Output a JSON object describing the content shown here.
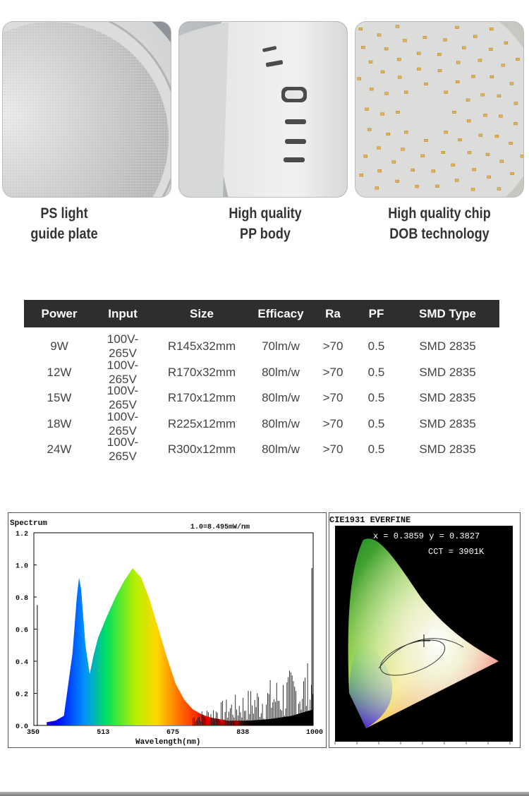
{
  "features": [
    {
      "line1": "PS light",
      "line2": "guide plate"
    },
    {
      "line1": "High quality",
      "line2": "PP body"
    },
    {
      "line1": "High quality chip",
      "line2": "DOB technology"
    }
  ],
  "table": {
    "headers": [
      "Power",
      "Input",
      "Size",
      "Efficacy",
      "Ra",
      "PF",
      "SMD Type"
    ],
    "rows": [
      [
        "9W",
        "100V-265V",
        "R145x32mm",
        "70lm/w",
        ">70",
        "0.5",
        "SMD 2835"
      ],
      [
        "12W",
        "100V-265V",
        "R170x32mm",
        "80lm/w",
        ">70",
        "0.5",
        "SMD 2835"
      ],
      [
        "15W",
        "100V-265V",
        "R170x12mm",
        "80lm/w",
        ">70",
        "0.5",
        "SMD 2835"
      ],
      [
        "18W",
        "100V-265V",
        "R225x12mm",
        "80lm/w",
        ">70",
        "0.5",
        "SMD 2835"
      ],
      [
        "24W",
        "100V-265V",
        "R300x12mm",
        "80lm/w",
        ">70",
        "0.5",
        "SMD 2835"
      ]
    ]
  },
  "chart_data": [
    {
      "type": "area",
      "title": "Spectrum",
      "annotation": "1.0=8.495mW/nm",
      "xlabel": "Wavelength(nm)",
      "ylabel": "",
      "xlim": [
        350,
        1000
      ],
      "ylim": [
        0,
        1.2
      ],
      "xticks": [
        "350",
        "513",
        "675",
        "838",
        "1000"
      ],
      "yticks": [
        "0.0",
        "0.2",
        "0.4",
        "0.6",
        "0.8",
        "1.0",
        "1.2"
      ],
      "x": [
        380,
        400,
        420,
        440,
        450,
        455,
        460,
        470,
        480,
        490,
        500,
        520,
        540,
        560,
        580,
        600,
        620,
        640,
        660,
        680,
        700,
        720,
        740,
        760,
        780,
        800,
        850,
        900,
        950,
        1000
      ],
      "values": [
        0.02,
        0.03,
        0.06,
        0.45,
        0.8,
        0.92,
        0.85,
        0.5,
        0.32,
        0.45,
        0.55,
        0.68,
        0.8,
        0.9,
        0.98,
        0.92,
        0.78,
        0.6,
        0.42,
        0.26,
        0.16,
        0.1,
        0.07,
        0.05,
        0.04,
        0.03,
        0.03,
        0.04,
        0.06,
        0.1
      ]
    },
    {
      "type": "scatter",
      "title": "CIE1931 EVERFINE",
      "annotations": [
        "x = 0.3859  y = 0.3827",
        "CCT = 3901K"
      ],
      "x": [
        0.3859
      ],
      "values": [
        0.3827
      ],
      "xlim": [
        0,
        0.8
      ],
      "ylim": [
        0,
        0.9
      ]
    }
  ],
  "colors": {
    "header_bg": "#2e2e2e",
    "header_text": "#ffffff",
    "caption": "#333333"
  }
}
